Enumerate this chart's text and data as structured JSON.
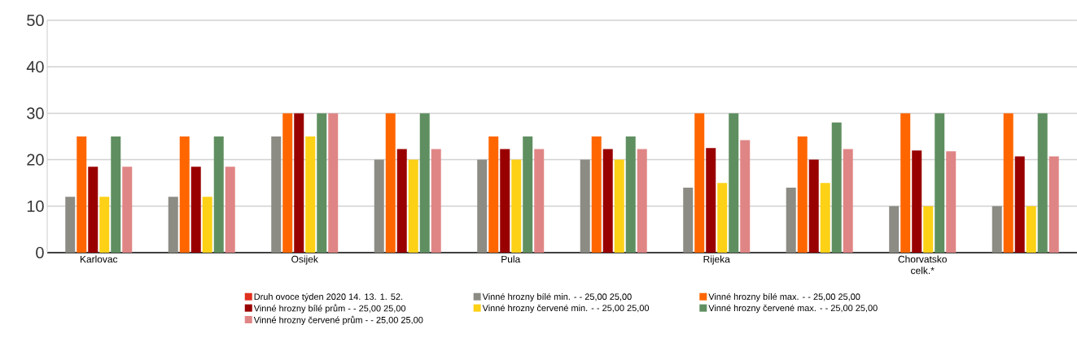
{
  "chart_data": {
    "type": "bar",
    "categories": [
      "Karlovac",
      null,
      "Osijek",
      null,
      "Pula",
      null,
      "Rijeka",
      null,
      "Chorvatsko celk.*",
      null
    ],
    "series": [
      {
        "name": "Druh ovoce týden 2020 14. 13. 1. 52.",
        "color": "#e0301e",
        "values": [
          null,
          null,
          null,
          null,
          null,
          null,
          null,
          null,
          null,
          null
        ]
      },
      {
        "name": "Vinné hrozny bílé min. - - 25,00 25,00",
        "color": "#8c8b84",
        "values": [
          12,
          12,
          25,
          20,
          20,
          20,
          14,
          14,
          10,
          10
        ]
      },
      {
        "name": "Vinné hrozny bílé max. - - 25,00 25,00",
        "color": "#ff6600",
        "values": [
          25,
          25,
          30,
          30,
          25,
          25,
          30,
          25,
          30,
          30
        ]
      },
      {
        "name": "Vinné hrozny bílé prům - - 25,00 25,00",
        "color": "#990000",
        "values": [
          18.5,
          18.5,
          30,
          22.3,
          22.3,
          22.3,
          22.5,
          20,
          22,
          20.7
        ]
      },
      {
        "name": "Vinné hrozny červené min. - - 25,00 25,00",
        "color": "#fcd116",
        "values": [
          12,
          12,
          25,
          20,
          20,
          20,
          15,
          15,
          10,
          10
        ]
      },
      {
        "name": "Vinné hrozny červené max. - - 25,00 25,00",
        "color": "#5f8f60",
        "values": [
          25,
          25,
          30,
          30,
          25,
          25,
          30,
          28,
          30,
          30
        ]
      },
      {
        "name": "Vinné hrozny červené prům - - 25,00 25,00",
        "color": "#e08585",
        "values": [
          18.5,
          18.5,
          30,
          22.3,
          22.3,
          22.3,
          24.2,
          22.3,
          21.8,
          20.7
        ]
      }
    ],
    "ylim": [
      0,
      50
    ],
    "yticks": [
      0,
      10,
      20,
      30,
      40,
      50
    ],
    "grid": "y",
    "legend": "bottom"
  }
}
